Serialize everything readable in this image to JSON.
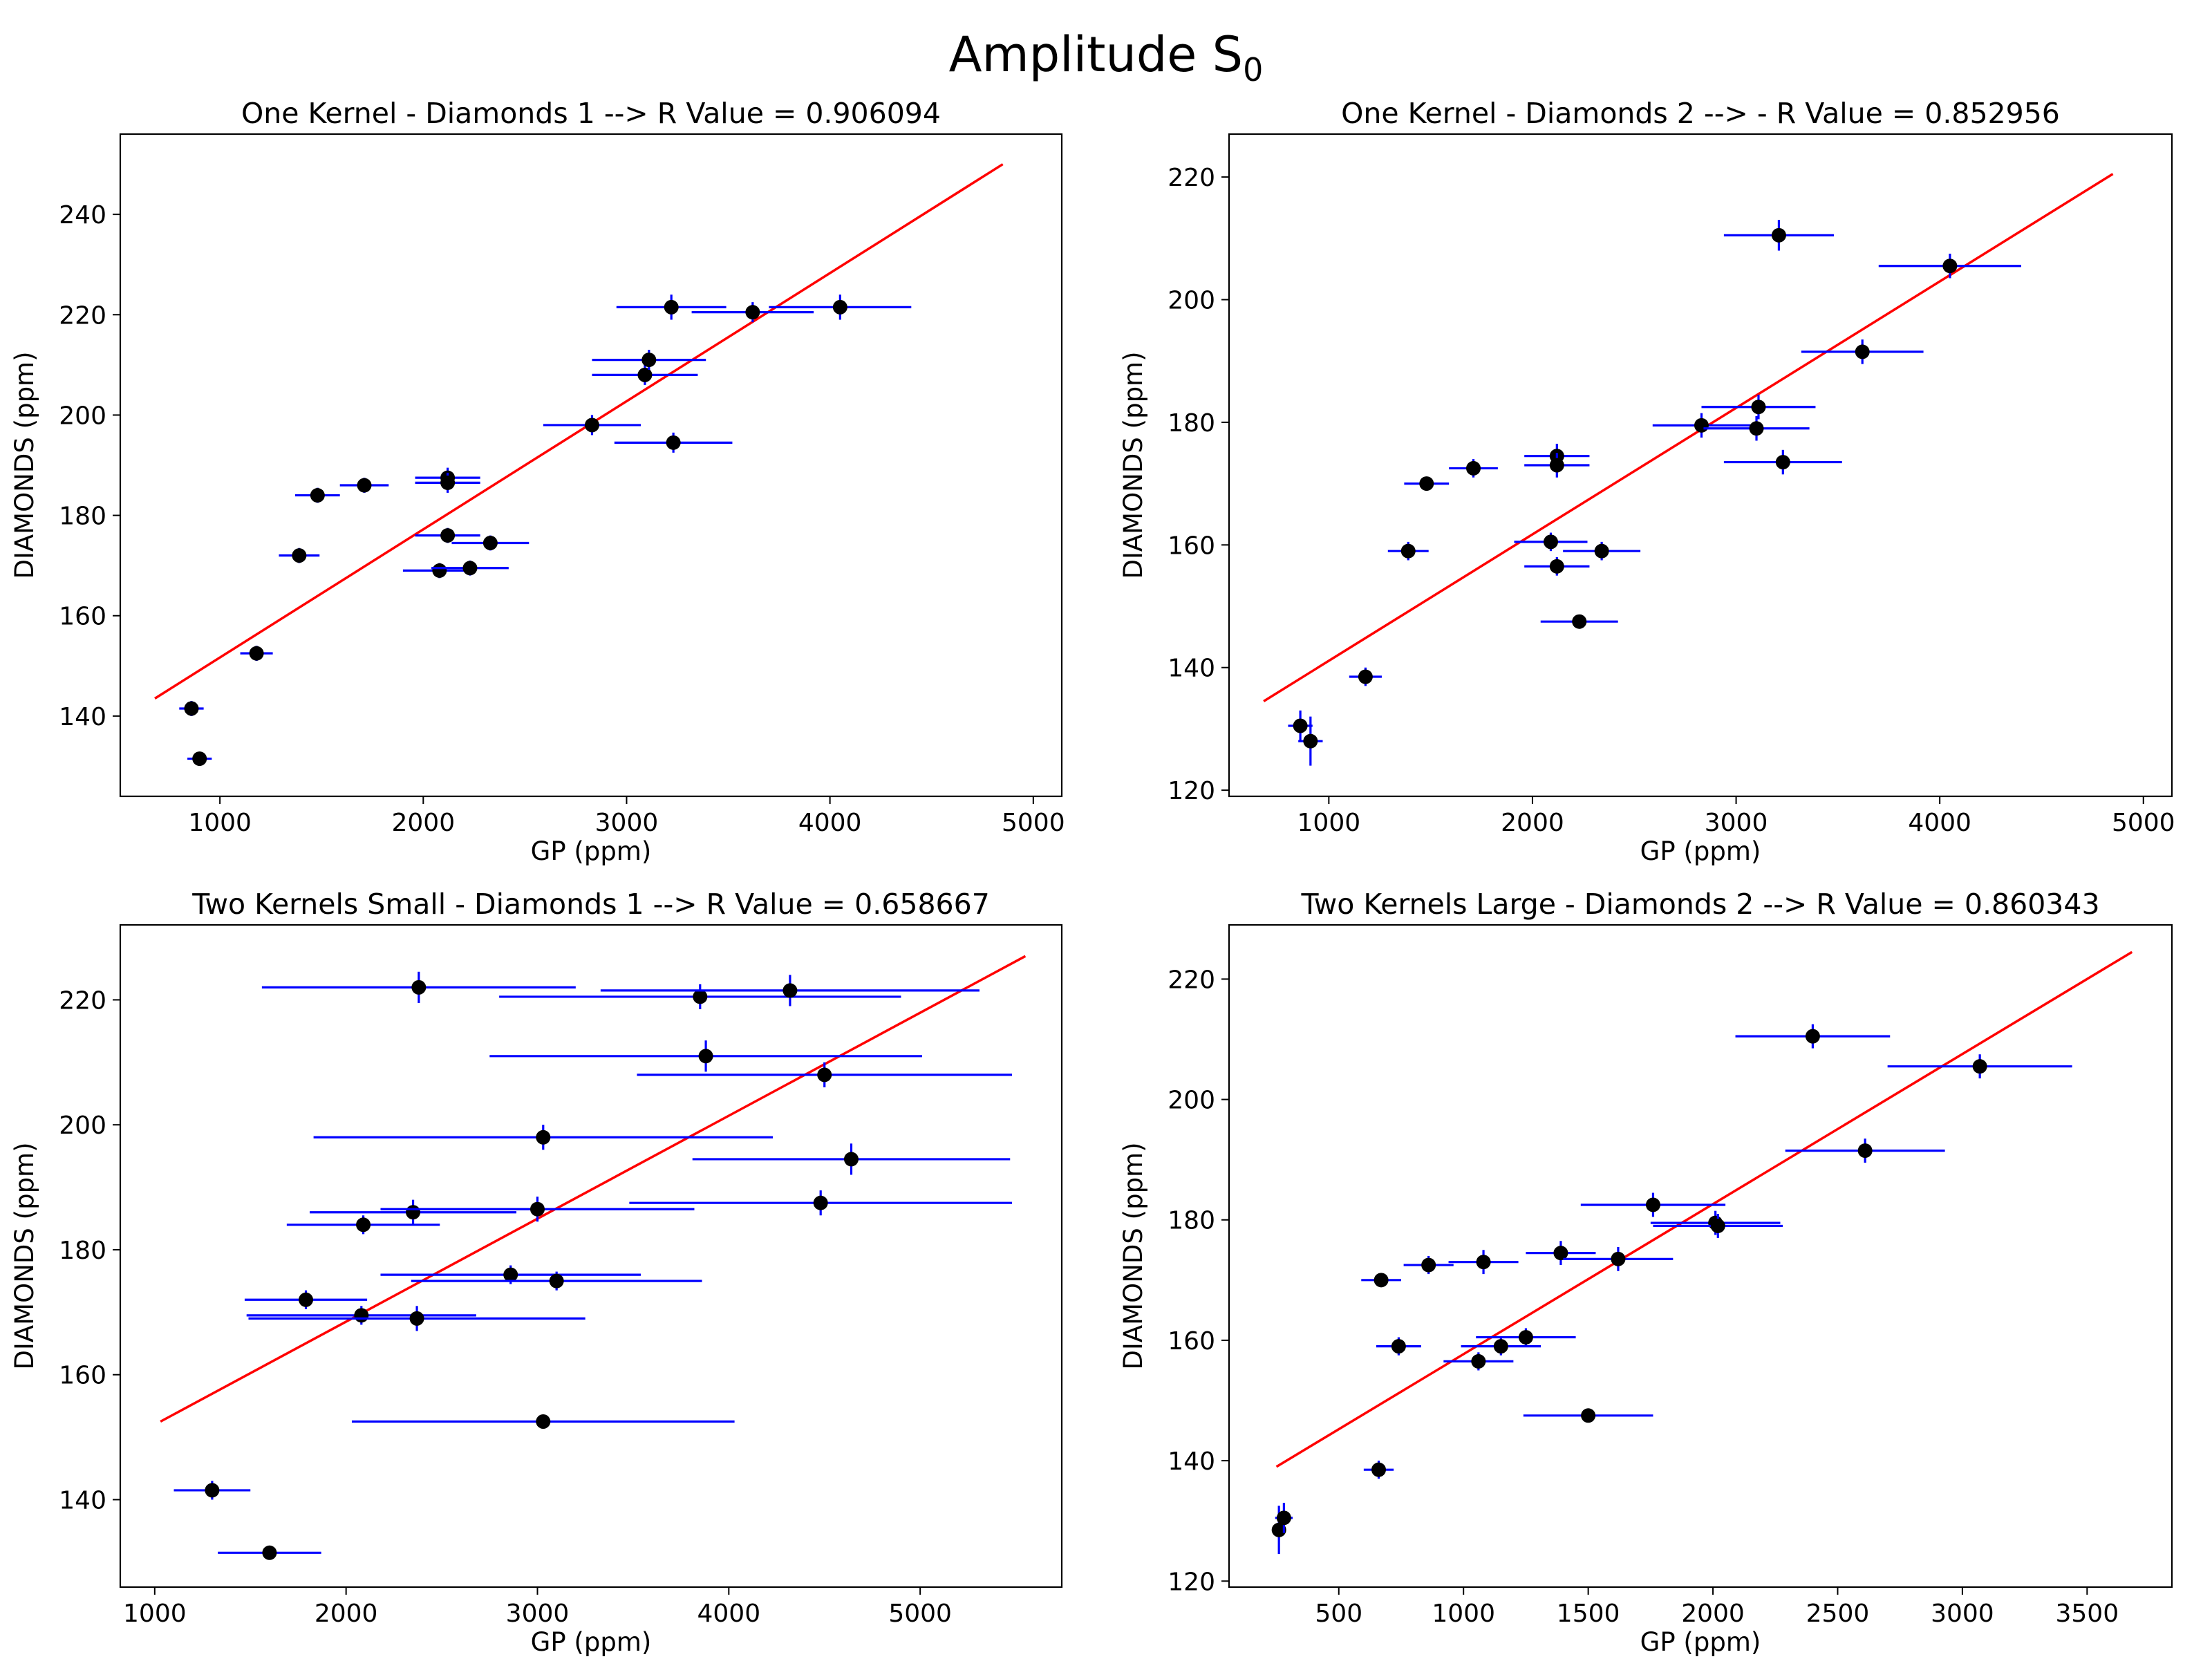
{
  "figure": {
    "title": "Amplitude S",
    "title_subscript": "0"
  },
  "colors": {
    "fit_line": "#ff0000",
    "error_bars": "#0000ff",
    "points": "#000000",
    "axes": "#000000",
    "background": "#ffffff"
  },
  "chart_data": [
    {
      "type": "scatter",
      "title": "One Kernel - Diamonds 1 --> R Value = 0.906094",
      "xlabel": "GP (ppm)",
      "ylabel": "DIAMONDS (ppm)",
      "xlim": [
        510,
        5140
      ],
      "ylim": [
        124,
        256
      ],
      "xticks": [
        1000,
        2000,
        3000,
        4000,
        5000
      ],
      "yticks": [
        140,
        160,
        180,
        200,
        220,
        240
      ],
      "grid": false,
      "fit_line": {
        "x": [
          680,
          4850
        ],
        "y": [
          143.5,
          250
        ]
      },
      "points": [
        {
          "x": 860,
          "y": 141.5,
          "xerr": 60,
          "yerr": 1.5
        },
        {
          "x": 900,
          "y": 131.5,
          "xerr": 60,
          "yerr": 1.0
        },
        {
          "x": 1180,
          "y": 152.5,
          "xerr": 80,
          "yerr": 1.5
        },
        {
          "x": 1390,
          "y": 172,
          "xerr": 100,
          "yerr": 1.5
        },
        {
          "x": 1480,
          "y": 184,
          "xerr": 110,
          "yerr": 1.5
        },
        {
          "x": 1710,
          "y": 186,
          "xerr": 120,
          "yerr": 1.5
        },
        {
          "x": 2080,
          "y": 169,
          "xerr": 180,
          "yerr": 1.5
        },
        {
          "x": 2120,
          "y": 176,
          "xerr": 160,
          "yerr": 1.5
        },
        {
          "x": 2120,
          "y": 187.5,
          "xerr": 160,
          "yerr": 2.0
        },
        {
          "x": 2120,
          "y": 186.5,
          "xerr": 160,
          "yerr": 2.0
        },
        {
          "x": 2230,
          "y": 169.5,
          "xerr": 190,
          "yerr": 1.5
        },
        {
          "x": 2330,
          "y": 174.5,
          "xerr": 190,
          "yerr": 1.5
        },
        {
          "x": 2830,
          "y": 198,
          "xerr": 240,
          "yerr": 2.0
        },
        {
          "x": 3090,
          "y": 208,
          "xerr": 260,
          "yerr": 2.0
        },
        {
          "x": 3110,
          "y": 211,
          "xerr": 280,
          "yerr": 2.0
        },
        {
          "x": 3220,
          "y": 221.5,
          "xerr": 270,
          "yerr": 2.5
        },
        {
          "x": 3230,
          "y": 194.5,
          "xerr": 290,
          "yerr": 2.0
        },
        {
          "x": 3620,
          "y": 220.5,
          "xerr": 300,
          "yerr": 2.0
        },
        {
          "x": 4050,
          "y": 221.5,
          "xerr": 350,
          "yerr": 2.5
        }
      ]
    },
    {
      "type": "scatter",
      "title": "One Kernel - Diamonds 2 --> - R Value = 0.852956",
      "xlabel": "GP (ppm)",
      "ylabel": "DIAMONDS (ppm)",
      "xlim": [
        510,
        5140
      ],
      "ylim": [
        119,
        227
      ],
      "xticks": [
        1000,
        2000,
        3000,
        4000,
        5000
      ],
      "yticks": [
        120,
        140,
        160,
        180,
        200,
        220
      ],
      "grid": false,
      "fit_line": {
        "x": [
          680,
          4850
        ],
        "y": [
          134.5,
          220.5
        ]
      },
      "points": [
        {
          "x": 860,
          "y": 130.5,
          "xerr": 60,
          "yerr": 2.5
        },
        {
          "x": 910,
          "y": 128,
          "xerr": 60,
          "yerr": 4.0
        },
        {
          "x": 1180,
          "y": 138.5,
          "xerr": 80,
          "yerr": 1.5
        },
        {
          "x": 1390,
          "y": 159,
          "xerr": 100,
          "yerr": 1.5
        },
        {
          "x": 1480,
          "y": 170,
          "xerr": 110,
          "yerr": 1.0
        },
        {
          "x": 1710,
          "y": 172.5,
          "xerr": 120,
          "yerr": 1.5
        },
        {
          "x": 2090,
          "y": 160.5,
          "xerr": 180,
          "yerr": 1.5
        },
        {
          "x": 2120,
          "y": 174.5,
          "xerr": 160,
          "yerr": 2.0
        },
        {
          "x": 2120,
          "y": 173,
          "xerr": 160,
          "yerr": 2.0
        },
        {
          "x": 2120,
          "y": 156.5,
          "xerr": 160,
          "yerr": 1.5
        },
        {
          "x": 2230,
          "y": 147.5,
          "xerr": 190,
          "yerr": 1.0
        },
        {
          "x": 2340,
          "y": 159,
          "xerr": 190,
          "yerr": 1.5
        },
        {
          "x": 2830,
          "y": 179.5,
          "xerr": 240,
          "yerr": 2.0
        },
        {
          "x": 3100,
          "y": 179,
          "xerr": 260,
          "yerr": 2.0
        },
        {
          "x": 3110,
          "y": 182.5,
          "xerr": 280,
          "yerr": 2.0
        },
        {
          "x": 3210,
          "y": 210.5,
          "xerr": 270,
          "yerr": 2.5
        },
        {
          "x": 3230,
          "y": 173.5,
          "xerr": 290,
          "yerr": 2.0
        },
        {
          "x": 3620,
          "y": 191.5,
          "xerr": 300,
          "yerr": 2.0
        },
        {
          "x": 4050,
          "y": 205.5,
          "xerr": 350,
          "yerr": 2.0
        }
      ]
    },
    {
      "type": "scatter",
      "title": "Two Kernels Small - Diamonds 1 --> R Value = 0.658667",
      "xlabel": "GP (ppm)",
      "ylabel": "DIAMONDS (ppm)",
      "xlim": [
        820,
        5740
      ],
      "ylim": [
        126,
        232
      ],
      "xticks": [
        1000,
        2000,
        3000,
        4000,
        5000
      ],
      "yticks": [
        140,
        160,
        180,
        200,
        220
      ],
      "grid": false,
      "fit_line": {
        "x": [
          1030,
          5550
        ],
        "y": [
          152.5,
          227
        ]
      },
      "points": [
        {
          "x": 1300,
          "y": 141.5,
          "xerr": 200,
          "yerr": 1.5
        },
        {
          "x": 1600,
          "y": 131.5,
          "xerr": 270,
          "yerr": 1.0
        },
        {
          "x": 1790,
          "y": 172,
          "xerr": 320,
          "yerr": 1.5
        },
        {
          "x": 2090,
          "y": 184,
          "xerr": 400,
          "yerr": 1.5
        },
        {
          "x": 2080,
          "y": 169.5,
          "xerr": 600,
          "yerr": 1.5
        },
        {
          "x": 2350,
          "y": 186,
          "xerr": 540,
          "yerr": 2.0
        },
        {
          "x": 2370,
          "y": 169,
          "xerr": 880,
          "yerr": 2.0
        },
        {
          "x": 2380,
          "y": 222,
          "xerr": 820,
          "yerr": 2.5
        },
        {
          "x": 2860,
          "y": 176,
          "xerr": 680,
          "yerr": 1.5
        },
        {
          "x": 3000,
          "y": 186.5,
          "xerr": 820,
          "yerr": 2.0
        },
        {
          "x": 3030,
          "y": 198,
          "xerr": 1200,
          "yerr": 2.0
        },
        {
          "x": 3030,
          "y": 152.5,
          "xerr": 1000,
          "yerr": 1.0
        },
        {
          "x": 3100,
          "y": 175,
          "xerr": 760,
          "yerr": 1.5
        },
        {
          "x": 3850,
          "y": 220.5,
          "xerr": 1050,
          "yerr": 2.0
        },
        {
          "x": 3880,
          "y": 211,
          "xerr": 1130,
          "yerr": 2.5
        },
        {
          "x": 4320,
          "y": 221.5,
          "xerr": 990,
          "yerr": 2.5
        },
        {
          "x": 4480,
          "y": 187.5,
          "xerr": 1000,
          "yerr": 2.0
        },
        {
          "x": 4500,
          "y": 208,
          "xerr": 980,
          "yerr": 2.0
        },
        {
          "x": 4640,
          "y": 194.5,
          "xerr": 830,
          "yerr": 2.5
        }
      ]
    },
    {
      "type": "scatter",
      "title": "Two Kernels Large - Diamonds 2 --> R Value = 0.860343",
      "xlabel": "GP (ppm)",
      "ylabel": "DIAMONDS (ppm)",
      "xlim": [
        60,
        3840
      ],
      "ylim": [
        119,
        229
      ],
      "xticks": [
        500,
        1000,
        1500,
        2000,
        2500,
        3000,
        3500
      ],
      "yticks": [
        120,
        140,
        160,
        180,
        200,
        220
      ],
      "grid": false,
      "fit_line": {
        "x": [
          250,
          3680
        ],
        "y": [
          139,
          224.5
        ]
      },
      "points": [
        {
          "x": 260,
          "y": 128.5,
          "xerr": 25,
          "yerr": 4.0
        },
        {
          "x": 280,
          "y": 130.5,
          "xerr": 35,
          "yerr": 2.5
        },
        {
          "x": 660,
          "y": 138.5,
          "xerr": 60,
          "yerr": 1.5
        },
        {
          "x": 670,
          "y": 170,
          "xerr": 80,
          "yerr": 1.0
        },
        {
          "x": 740,
          "y": 159,
          "xerr": 90,
          "yerr": 1.5
        },
        {
          "x": 860,
          "y": 172.5,
          "xerr": 100,
          "yerr": 1.5
        },
        {
          "x": 1060,
          "y": 156.5,
          "xerr": 140,
          "yerr": 1.5
        },
        {
          "x": 1080,
          "y": 173,
          "xerr": 140,
          "yerr": 2.0
        },
        {
          "x": 1150,
          "y": 159,
          "xerr": 160,
          "yerr": 1.5
        },
        {
          "x": 1250,
          "y": 160.5,
          "xerr": 200,
          "yerr": 1.5
        },
        {
          "x": 1390,
          "y": 174.5,
          "xerr": 140,
          "yerr": 2.0
        },
        {
          "x": 1500,
          "y": 147.5,
          "xerr": 260,
          "yerr": 1.0
        },
        {
          "x": 1620,
          "y": 173.5,
          "xerr": 220,
          "yerr": 2.0
        },
        {
          "x": 1760,
          "y": 182.5,
          "xerr": 290,
          "yerr": 2.0
        },
        {
          "x": 2010,
          "y": 179.5,
          "xerr": 260,
          "yerr": 2.0
        },
        {
          "x": 2020,
          "y": 179,
          "xerr": 260,
          "yerr": 2.0
        },
        {
          "x": 2400,
          "y": 210.5,
          "xerr": 310,
          "yerr": 2.0
        },
        {
          "x": 2610,
          "y": 191.5,
          "xerr": 320,
          "yerr": 2.0
        },
        {
          "x": 3070,
          "y": 205.5,
          "xerr": 370,
          "yerr": 2.0
        }
      ]
    }
  ]
}
